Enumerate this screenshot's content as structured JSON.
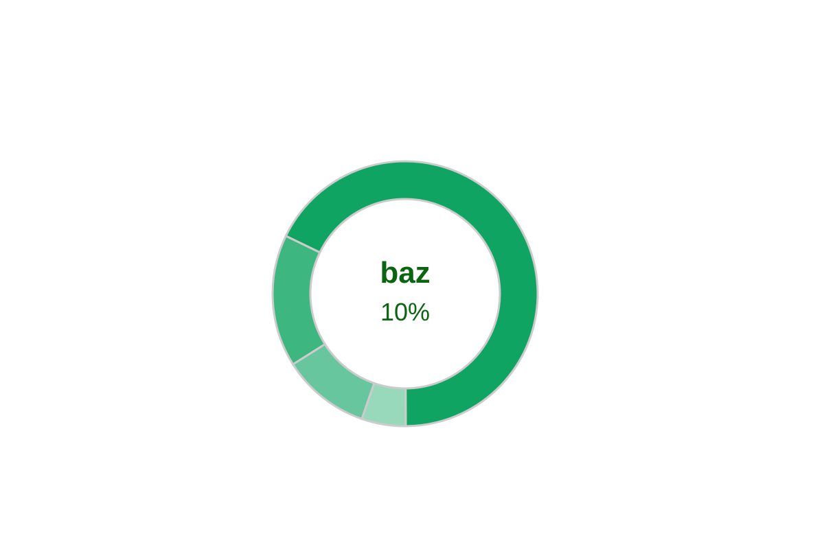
{
  "chart_data": {
    "type": "pie",
    "variant": "donut",
    "slices": [
      {
        "label": "",
        "value": 63,
        "color": "#0fa461"
      },
      {
        "label": "",
        "value": 15,
        "color": "#3db67f"
      },
      {
        "label": "baz",
        "value": 10,
        "color": "#67c69e"
      },
      {
        "label": "",
        "value": 5,
        "color": "#98d9bb"
      }
    ],
    "center": {
      "label": "baz",
      "value": "10%"
    },
    "stroke_color": "#cccccc",
    "text_color": "#0b6410"
  }
}
